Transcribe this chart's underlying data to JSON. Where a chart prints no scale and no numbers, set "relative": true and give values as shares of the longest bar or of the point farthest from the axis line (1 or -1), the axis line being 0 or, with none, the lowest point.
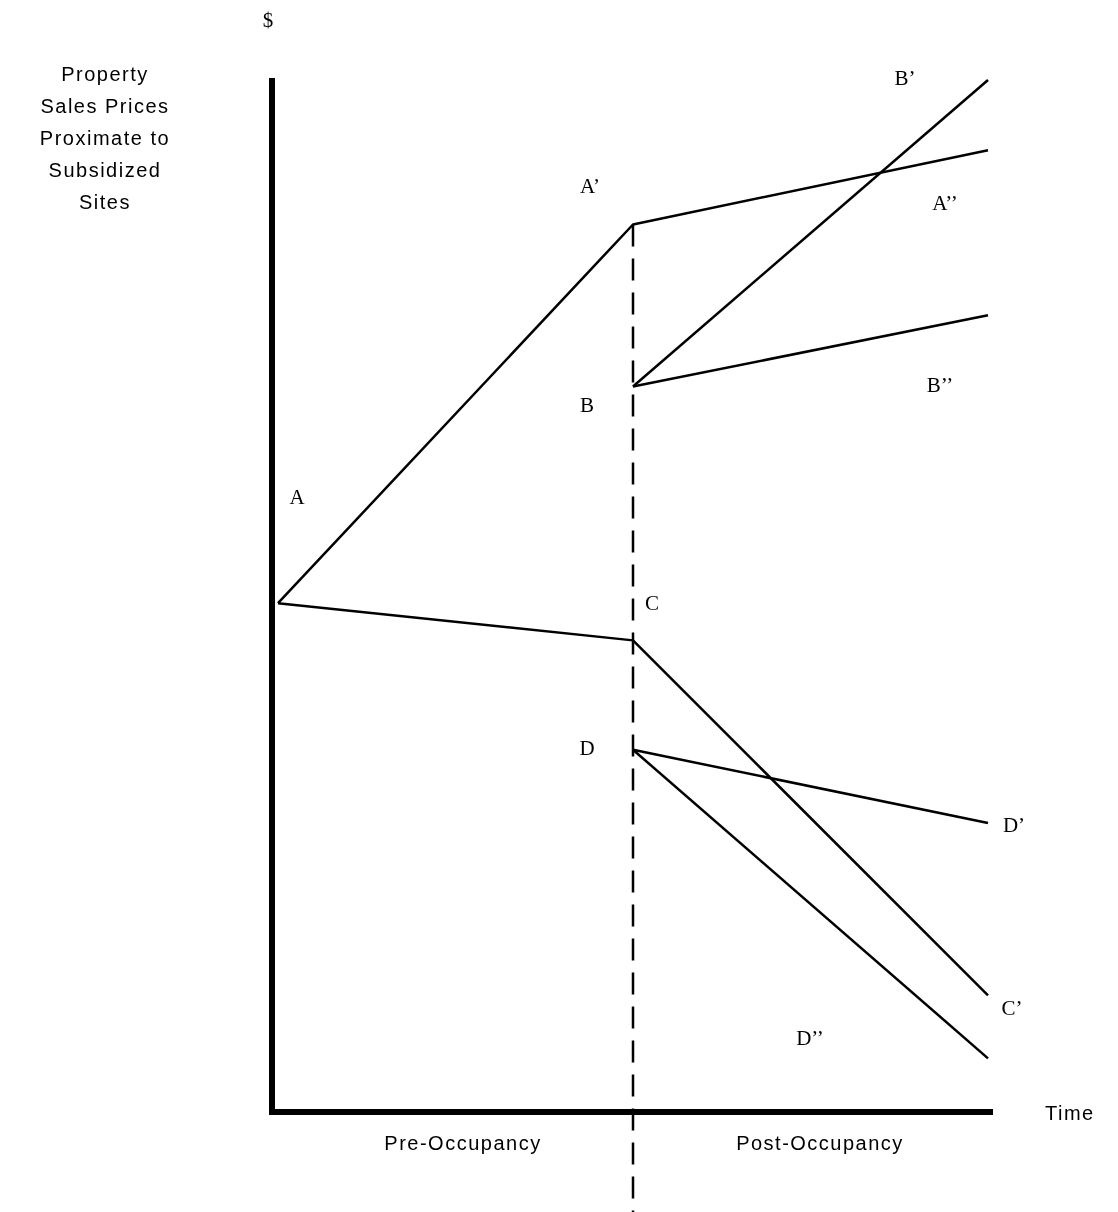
{
  "chart_data": {
    "type": "line",
    "relative": true,
    "xlabel": "Time",
    "ylabel": "Property Sales Prices Proximate to Subsidized Sites",
    "categories": [
      null,
      null,
      null
    ],
    "marker": "none",
    "series": [
      {
        "color": "#000000",
        "values": [
          0.493,
          0.86,
          0.932
        ]
      },
      {
        "color": "#000000",
        "values": [
          null,
          0.703,
          1.0
        ]
      },
      {
        "color": "#000000",
        "values": [
          null,
          0.703,
          0.772
        ]
      },
      {
        "color": "#000000",
        "values": [
          0.493,
          0.457,
          0.113
        ]
      },
      {
        "color": "#000000",
        "values": [
          null,
          0.351,
          0.28
        ]
      },
      {
        "color": "#000000",
        "values": [
          null,
          0.351,
          0.052
        ]
      }
    ],
    "ref_lines": [
      {
        "axis": "x",
        "line_style": "dashed",
        "color": "#000000"
      }
    ],
    "annotations": [
      "$",
      "Pre-Occupancy",
      "Post-Occupancy",
      "A",
      "A’",
      "A’’",
      "B’",
      "B",
      "B’’",
      "C",
      "C’",
      "D",
      "D’",
      "D’’"
    ]
  }
}
